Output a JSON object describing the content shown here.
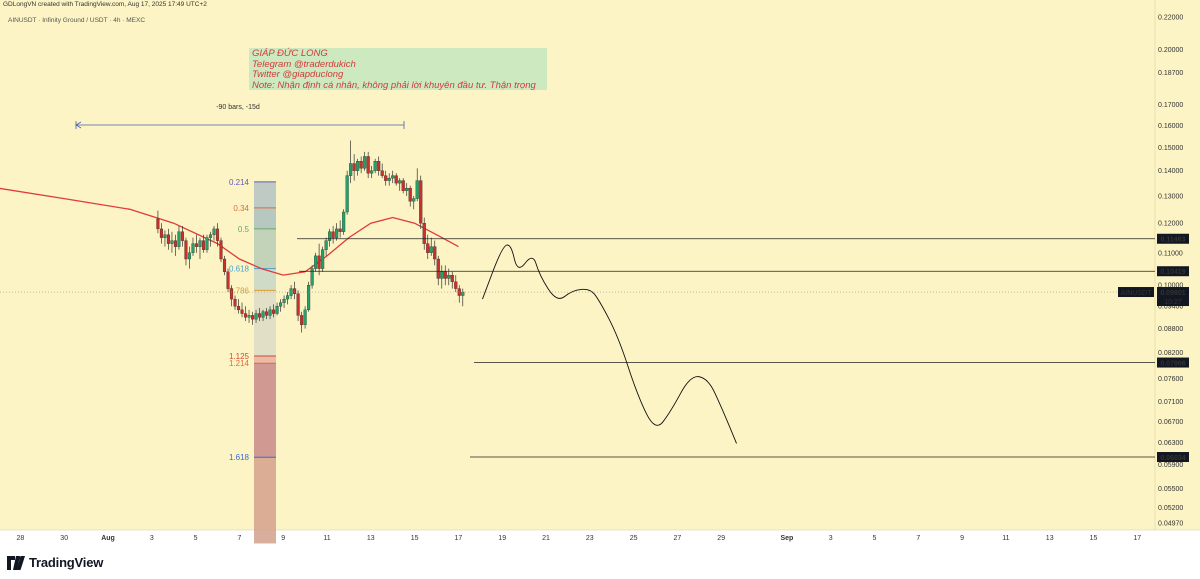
{
  "header": {
    "created_by": "GDLongVN created with TradingView.com, Aug 17, 2025 17:49 UTC+2",
    "symbol_line": "AINUSDT · Infinity Ground / USDT · 4h · MEXC"
  },
  "watermark": {
    "line1": "GIÁP ĐỨC LONG",
    "line2": "Telegram @traderdukich",
    "line3": "Twitter @giapduclong",
    "line4": "Note: Nhận định cá nhân, không phải lời khuyên đầu tư. Thận trọng"
  },
  "brand": {
    "name": "TradingView"
  },
  "chart_data": {
    "type": "candlestick",
    "symbol": "AINUSDT",
    "timeframe": "4h",
    "exchange": "MEXC",
    "ylim": [
      0.0468,
      0.2216
    ],
    "y_ticks": [
      "0.22000",
      "0.20000",
      "0.18700",
      "0.17000",
      "0.16000",
      "0.15000",
      "0.14000",
      "0.13000",
      "0.12000",
      "0.11000",
      "0.10000",
      "0.09400",
      "0.08800",
      "0.08200",
      "0.07600",
      "0.07100",
      "0.06700",
      "0.06300",
      "0.05900",
      "0.05500",
      "0.05200",
      "0.04970"
    ],
    "y_tick_values": [
      0.22,
      0.2,
      0.187,
      0.17,
      0.16,
      0.15,
      0.14,
      0.13,
      0.12,
      0.11,
      0.1,
      0.094,
      0.088,
      0.082,
      0.076,
      0.071,
      0.067,
      0.063,
      0.059,
      0.055,
      0.052,
      0.0497
    ],
    "x_ticks": [
      {
        "label": "28",
        "day": -4
      },
      {
        "label": "30",
        "day": -2
      },
      {
        "label": "Aug",
        "day": 0
      },
      {
        "label": "3",
        "day": 2
      },
      {
        "label": "5",
        "day": 4
      },
      {
        "label": "7",
        "day": 6
      },
      {
        "label": "9",
        "day": 8
      },
      {
        "label": "11",
        "day": 10
      },
      {
        "label": "13",
        "day": 12
      },
      {
        "label": "15",
        "day": 14
      },
      {
        "label": "17",
        "day": 16
      },
      {
        "label": "19",
        "day": 18
      },
      {
        "label": "21",
        "day": 20
      },
      {
        "label": "23",
        "day": 22
      },
      {
        "label": "25",
        "day": 24
      },
      {
        "label": "27",
        "day": 26
      },
      {
        "label": "29",
        "day": 28
      },
      {
        "label": "Sep",
        "day": 31
      },
      {
        "label": "3",
        "day": 33
      },
      {
        "label": "5",
        "day": 35
      },
      {
        "label": "7",
        "day": 37
      },
      {
        "label": "9",
        "day": 39
      },
      {
        "label": "11",
        "day": 41
      },
      {
        "label": "13",
        "day": 43
      },
      {
        "label": "15",
        "day": 45
      },
      {
        "label": "17",
        "day": 47
      }
    ],
    "x_bold_labels": [
      "Aug",
      "Sep"
    ],
    "candles_ohlc": [
      [
        0.1215,
        0.1245,
        0.1165,
        0.118
      ],
      [
        0.118,
        0.12,
        0.113,
        0.115
      ],
      [
        0.115,
        0.1175,
        0.112,
        0.116
      ],
      [
        0.116,
        0.118,
        0.111,
        0.113
      ],
      [
        0.113,
        0.117,
        0.11,
        0.114
      ],
      [
        0.114,
        0.116,
        0.109,
        0.112
      ],
      [
        0.112,
        0.119,
        0.111,
        0.117
      ],
      [
        0.117,
        0.119,
        0.112,
        0.114
      ],
      [
        0.114,
        0.115,
        0.106,
        0.108
      ],
      [
        0.108,
        0.112,
        0.105,
        0.11
      ],
      [
        0.11,
        0.115,
        0.109,
        0.113
      ],
      [
        0.113,
        0.116,
        0.11,
        0.112
      ],
      [
        0.112,
        0.115,
        0.108,
        0.114
      ],
      [
        0.114,
        0.116,
        0.11,
        0.111
      ],
      [
        0.111,
        0.116,
        0.11,
        0.115
      ],
      [
        0.115,
        0.117,
        0.112,
        0.116
      ],
      [
        0.116,
        0.119,
        0.114,
        0.118
      ],
      [
        0.118,
        0.12,
        0.112,
        0.114
      ],
      [
        0.114,
        0.115,
        0.107,
        0.108
      ],
      [
        0.108,
        0.109,
        0.103,
        0.104
      ],
      [
        0.104,
        0.105,
        0.098,
        0.099
      ],
      [
        0.099,
        0.1,
        0.094,
        0.096
      ],
      [
        0.096,
        0.097,
        0.093,
        0.094
      ],
      [
        0.094,
        0.096,
        0.092,
        0.093
      ],
      [
        0.093,
        0.095,
        0.091,
        0.092
      ],
      [
        0.092,
        0.094,
        0.09,
        0.091
      ],
      [
        0.091,
        0.093,
        0.0895,
        0.0915
      ],
      [
        0.0915,
        0.0925,
        0.089,
        0.0905
      ],
      [
        0.0905,
        0.093,
        0.0895,
        0.092
      ],
      [
        0.092,
        0.0935,
        0.09,
        0.091
      ],
      [
        0.091,
        0.093,
        0.09,
        0.0925
      ],
      [
        0.0925,
        0.0935,
        0.0905,
        0.0915
      ],
      [
        0.0915,
        0.094,
        0.0905,
        0.093
      ],
      [
        0.093,
        0.0945,
        0.091,
        0.092
      ],
      [
        0.092,
        0.095,
        0.0915,
        0.094
      ],
      [
        0.094,
        0.096,
        0.0925,
        0.095
      ],
      [
        0.095,
        0.097,
        0.0935,
        0.096
      ],
      [
        0.096,
        0.098,
        0.0945,
        0.097
      ],
      [
        0.097,
        0.1,
        0.096,
        0.099
      ],
      [
        0.099,
        0.101,
        0.096,
        0.0975
      ],
      [
        0.0975,
        0.0985,
        0.09,
        0.0915
      ],
      [
        0.0915,
        0.0925,
        0.087,
        0.089
      ],
      [
        0.089,
        0.094,
        0.088,
        0.093
      ],
      [
        0.093,
        0.101,
        0.0925,
        0.1
      ],
      [
        0.1,
        0.106,
        0.099,
        0.105
      ],
      [
        0.105,
        0.11,
        0.104,
        0.109
      ],
      [
        0.109,
        0.113,
        0.103,
        0.105
      ],
      [
        0.105,
        0.112,
        0.104,
        0.111
      ],
      [
        0.111,
        0.115,
        0.109,
        0.114
      ],
      [
        0.114,
        0.118,
        0.112,
        0.117
      ],
      [
        0.117,
        0.119,
        0.113,
        0.115
      ],
      [
        0.115,
        0.12,
        0.114,
        0.118
      ],
      [
        0.118,
        0.121,
        0.115,
        0.117
      ],
      [
        0.117,
        0.125,
        0.116,
        0.124
      ],
      [
        0.124,
        0.14,
        0.123,
        0.138
      ],
      [
        0.138,
        0.153,
        0.135,
        0.143
      ],
      [
        0.143,
        0.147,
        0.136,
        0.14
      ],
      [
        0.14,
        0.145,
        0.138,
        0.144
      ],
      [
        0.144,
        0.146,
        0.139,
        0.141
      ],
      [
        0.141,
        0.148,
        0.14,
        0.146
      ],
      [
        0.146,
        0.148,
        0.137,
        0.139
      ],
      [
        0.139,
        0.142,
        0.137,
        0.14
      ],
      [
        0.14,
        0.145,
        0.139,
        0.144
      ],
      [
        0.144,
        0.146,
        0.138,
        0.14
      ],
      [
        0.14,
        0.143,
        0.137,
        0.138
      ],
      [
        0.138,
        0.14,
        0.134,
        0.136
      ],
      [
        0.136,
        0.139,
        0.134,
        0.137
      ],
      [
        0.137,
        0.14,
        0.135,
        0.138
      ],
      [
        0.138,
        0.139,
        0.134,
        0.135
      ],
      [
        0.135,
        0.137,
        0.132,
        0.136
      ],
      [
        0.136,
        0.137,
        0.131,
        0.132
      ],
      [
        0.132,
        0.135,
        0.13,
        0.133
      ],
      [
        0.133,
        0.134,
        0.126,
        0.128
      ],
      [
        0.128,
        0.13,
        0.125,
        0.129
      ],
      [
        0.129,
        0.141,
        0.128,
        0.136
      ],
      [
        0.136,
        0.138,
        0.118,
        0.12
      ],
      [
        0.12,
        0.122,
        0.111,
        0.113
      ],
      [
        0.113,
        0.116,
        0.108,
        0.11
      ],
      [
        0.11,
        0.115,
        0.109,
        0.112
      ],
      [
        0.112,
        0.114,
        0.106,
        0.108
      ],
      [
        0.108,
        0.109,
        0.1,
        0.102
      ],
      [
        0.102,
        0.106,
        0.099,
        0.104
      ],
      [
        0.104,
        0.106,
        0.1,
        0.102
      ],
      [
        0.102,
        0.105,
        0.1,
        0.103
      ],
      [
        0.103,
        0.104,
        0.099,
        0.101
      ],
      [
        0.101,
        0.103,
        0.098,
        0.099
      ],
      [
        0.099,
        0.1,
        0.095,
        0.097
      ],
      [
        0.097,
        0.099,
        0.094,
        0.098
      ]
    ],
    "moving_average": {
      "color": "#e03a3a",
      "points": [
        [
          -5,
          0.133
        ],
        [
          -2,
          0.129
        ],
        [
          1,
          0.125
        ],
        [
          3,
          0.12
        ],
        [
          5,
          0.113
        ],
        [
          6,
          0.108
        ],
        [
          7,
          0.105
        ],
        [
          8,
          0.103
        ],
        [
          9,
          0.104
        ],
        [
          10,
          0.109
        ],
        [
          11,
          0.115
        ],
        [
          12,
          0.12
        ],
        [
          13,
          0.122
        ],
        [
          14,
          0.12
        ],
        [
          15,
          0.116
        ],
        [
          16,
          0.112
        ]
      ]
    },
    "fib_levels": [
      {
        "label": "0.214",
        "value": 0.1355,
        "color": "#6a5ab8"
      },
      {
        "label": "0.34",
        "value": 0.1255,
        "color": "#e06a3a"
      },
      {
        "label": "0.5",
        "value": 0.118,
        "color": "#6aa86a"
      },
      {
        "label": "0.618",
        "value": 0.105,
        "color": "#4aa0d0"
      },
      {
        "label": "0.786",
        "value": 0.0985,
        "color": "#d8a030"
      },
      {
        "label": "1.125",
        "value": 0.0812,
        "color": "#d04a3a"
      },
      {
        "label": "1.214",
        "value": 0.0795,
        "color": "#e06a3a"
      },
      {
        "label": "1.618",
        "value": 0.0603,
        "color": "#3a6ad8"
      }
    ],
    "levels": [
      {
        "label": "0.11463",
        "value": 0.11463,
        "style": "black"
      },
      {
        "label": "0.10419",
        "value": 0.10419,
        "style": "black"
      },
      {
        "label": "0.07966",
        "value": 0.07966,
        "style": "black"
      },
      {
        "label": "0.06034",
        "value": 0.06034,
        "style": "black"
      }
    ],
    "current_price": {
      "symbol": "AINUSDT",
      "price": "0.09801",
      "countdown": "10:27",
      "value": 0.09801
    },
    "measure": {
      "label": "-90 bars, -15d"
    },
    "projection_path": [
      [
        17.1,
        0.096
      ],
      [
        18.0,
        0.112
      ],
      [
        18.4,
        0.113
      ],
      [
        18.7,
        0.1035
      ],
      [
        19.4,
        0.11
      ],
      [
        19.7,
        0.103
      ],
      [
        20.5,
        0.095
      ],
      [
        21.2,
        0.0985
      ],
      [
        22.0,
        0.099
      ],
      [
        22.4,
        0.096
      ],
      [
        23.3,
        0.086
      ],
      [
        24.2,
        0.072
      ],
      [
        25.0,
        0.065
      ],
      [
        25.7,
        0.069
      ],
      [
        26.6,
        0.0768
      ],
      [
        27.4,
        0.076
      ],
      [
        28.0,
        0.07
      ],
      [
        28.7,
        0.0628
      ]
    ]
  }
}
